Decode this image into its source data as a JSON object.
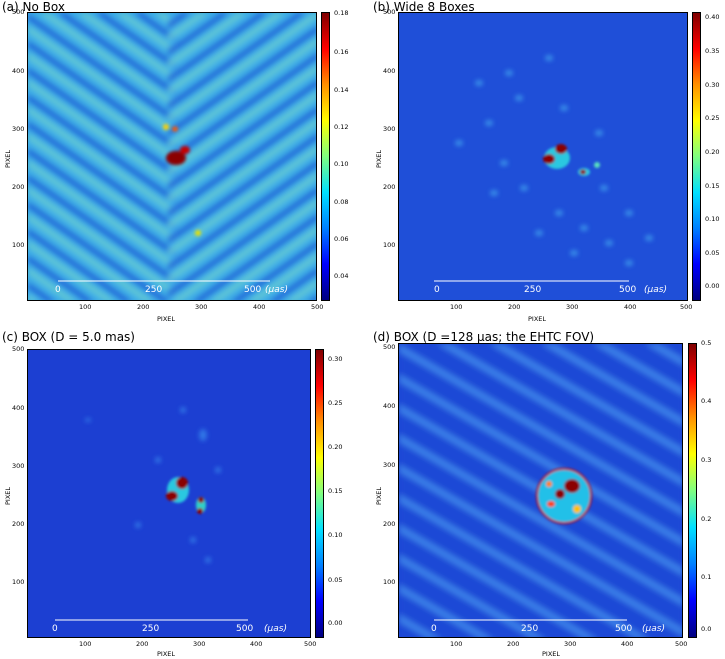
{
  "panels": [
    {
      "title": "(a) No Box",
      "xlabel": "PIXEL",
      "ylabel": "PIXEL",
      "xticks": [
        "100",
        "200",
        "300",
        "400",
        "500"
      ],
      "yticks": [
        "100",
        "200",
        "300",
        "400",
        "500"
      ],
      "cbar_ticks": [
        "0.18",
        "0.16",
        "0.14",
        "0.12",
        "0.10",
        "0.08",
        "0.06",
        "0.04"
      ],
      "scalebar": {
        "labels": [
          "0",
          "250",
          "500"
        ],
        "unit": "(μas)"
      }
    },
    {
      "title": "(b) Wide 8 Boxes",
      "xlabel": "PIXEL",
      "ylabel": "PIXEL",
      "xticks": [
        "100",
        "200",
        "300",
        "400",
        "500"
      ],
      "yticks": [
        "100",
        "200",
        "300",
        "400",
        "500"
      ],
      "cbar_ticks": [
        "0.40",
        "0.35",
        "0.30",
        "0.25",
        "0.20",
        "0.15",
        "0.10",
        "0.05",
        "0.00"
      ],
      "scalebar": {
        "labels": [
          "0",
          "250",
          "500"
        ],
        "unit": "(μas)"
      }
    },
    {
      "title": "(c) BOX (D = 5.0 mas)",
      "xlabel": "PIXEL",
      "ylabel": "PIXEL",
      "xticks": [
        "100",
        "200",
        "300",
        "400",
        "500"
      ],
      "yticks": [
        "100",
        "200",
        "300",
        "400",
        "500"
      ],
      "cbar_ticks": [
        "0.30",
        "0.25",
        "0.20",
        "0.15",
        "0.10",
        "0.05",
        "0.00"
      ],
      "scalebar": {
        "labels": [
          "0",
          "250",
          "500"
        ],
        "unit": "(μas)"
      }
    },
    {
      "title": "(d) BOX (D =128 μas; the EHTC FOV)",
      "xlabel": "PIXEL",
      "ylabel": "PIXEL",
      "xticks": [
        "100",
        "200",
        "300",
        "400",
        "500"
      ],
      "yticks": [
        "100",
        "200",
        "300",
        "400",
        "500"
      ],
      "cbar_ticks": [
        "0.5",
        "0.4",
        "0.3",
        "0.2",
        "0.1",
        "0.0"
      ],
      "scalebar": {
        "labels": [
          "0",
          "250",
          "500"
        ],
        "unit": "(μas)"
      }
    }
  ],
  "colormap": "jet",
  "colors": {
    "background_blue": "#1e3bd0",
    "noise_cyan": "#2aa7e6",
    "hot_red": "#8b0000"
  }
}
